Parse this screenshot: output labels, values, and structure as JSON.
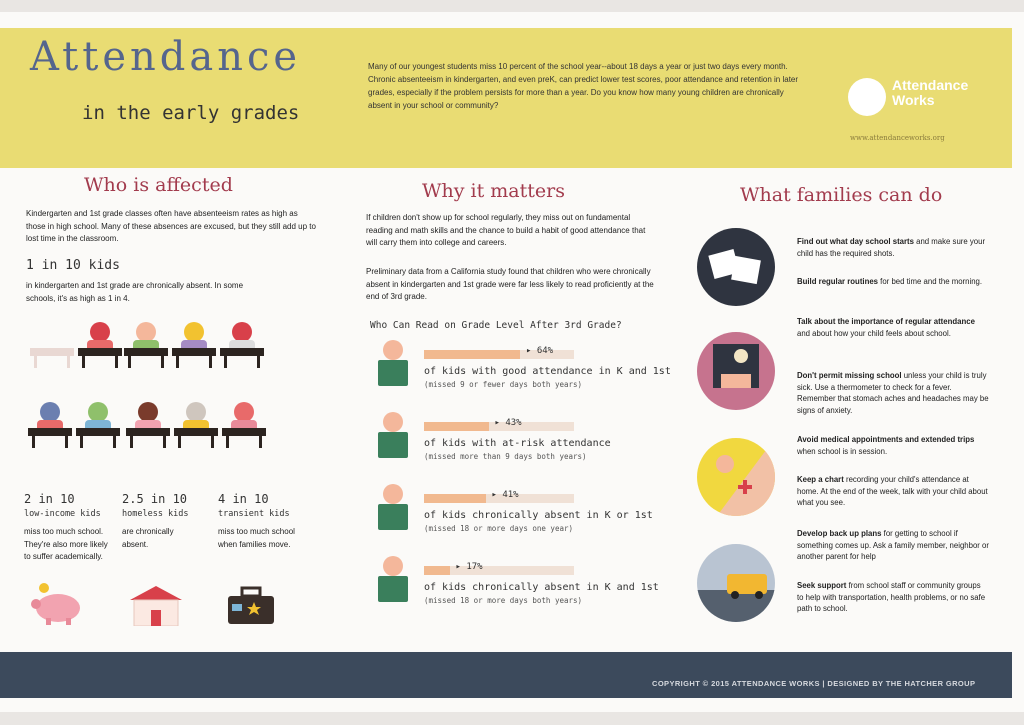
{
  "header": {
    "title_line1": "Attendance",
    "title_line2": "in the early grades",
    "intro": "Many of our youngest students miss 10 percent of the school year--about 18 days a year or just two days every month. Chronic absenteeism in kindergarten, and even preK, can predict lower test scores, poor attendance and retention in later grades, especially if the problem persists for more than a year. Do you know how many young children are chronically absent in your school or community?",
    "logo_name": "Attendance Works",
    "logo_url": "www.attendanceworks.org"
  },
  "who": {
    "heading": "Who is affected",
    "para": "Kindergarten and 1st grade classes often have absenteeism rates as high as those in high school. Many of these absences are excused, but they still add up to lost time in the classroom.",
    "stat_big": "1 in 10 kids",
    "stat_text": "in kindergarten and 1st grade are chronically absent. In some schools, it's as high as 1 in 4.",
    "stats": [
      {
        "value": "2 in 10",
        "label": "low-income kids",
        "desc": "miss too much school. They're also more likely to suffer academically."
      },
      {
        "value": "2.5 in 10",
        "label": "homeless kids",
        "desc": "are chronically absent."
      },
      {
        "value": "4 in 10",
        "label": "transient kids",
        "desc": "miss too much school when families move."
      }
    ]
  },
  "why": {
    "heading": "Why it matters",
    "para1": "If children don't show up for school regularly, they miss out on fundamental reading and math skills and the chance to build a habit of good attendance that will carry them into college and careers.",
    "para2": "Preliminary data from a California study found that children who were chronically absent in kindergarten and 1st grade were far less likely to read proficiently at the end of 3rd grade.",
    "chart_title": "Who Can Read on Grade Level After 3rd Grade?"
  },
  "chart_data": {
    "type": "bar",
    "title": "Who Can Read on Grade Level After 3rd Grade?",
    "categories": [
      "of kids with good attendance in K and 1st",
      "of kids with at-risk attendance",
      "of kids chronically absent in K or 1st",
      "of kids chronically absent in K and 1st"
    ],
    "subtitles": [
      "(missed 9 or fewer days both years)",
      "(missed more than 9 days both years)",
      "(missed 18 or more days one year)",
      "(missed 18 or more days both years)"
    ],
    "values": [
      64,
      43,
      41,
      17
    ],
    "value_labels": [
      "64%",
      "43%",
      "41%",
      "17%"
    ],
    "ylim": [
      0,
      100
    ]
  },
  "families": {
    "heading": "What families can do",
    "tips": [
      {
        "bold": "Find out what day school starts",
        "text": " and make sure your child has the required shots."
      },
      {
        "bold": "Build regular routines",
        "text": " for bed time and the morning."
      },
      {
        "bold": "Talk about the importance of regular attendance",
        "text": " and about how your child feels about school."
      },
      {
        "bold": "Don't permit missing school",
        "text": " unless your child is truly sick. Use a thermometer to check for a fever. Remember that stomach aches and headaches may be signs of anxiety."
      },
      {
        "bold": "Avoid medical appointments and extended trips",
        "text": " when school is in session."
      },
      {
        "bold": "Keep a chart",
        "text": " recording your child's attendance at home. At the end of the week, talk with your child about what you see."
      },
      {
        "bold": "Develop back up plans",
        "text": " for getting to school if something comes up. Ask a family member, neighbor or another parent for help"
      },
      {
        "bold": "Seek support",
        "text": " from school staff or community groups to help with transportation, health problems, or no safe path to school."
      }
    ]
  },
  "footer": {
    "copyright": "COPYRIGHT © 2015 ATTENDANCE WORKS | DESIGNED BY THE HATCHER GROUP"
  },
  "colors": {
    "header_bg": "#e9dc73",
    "heading": "#a23b4d",
    "title": "#55658d",
    "footer_bg": "#3c4a5c",
    "bar_fill": "#f1b98f"
  }
}
